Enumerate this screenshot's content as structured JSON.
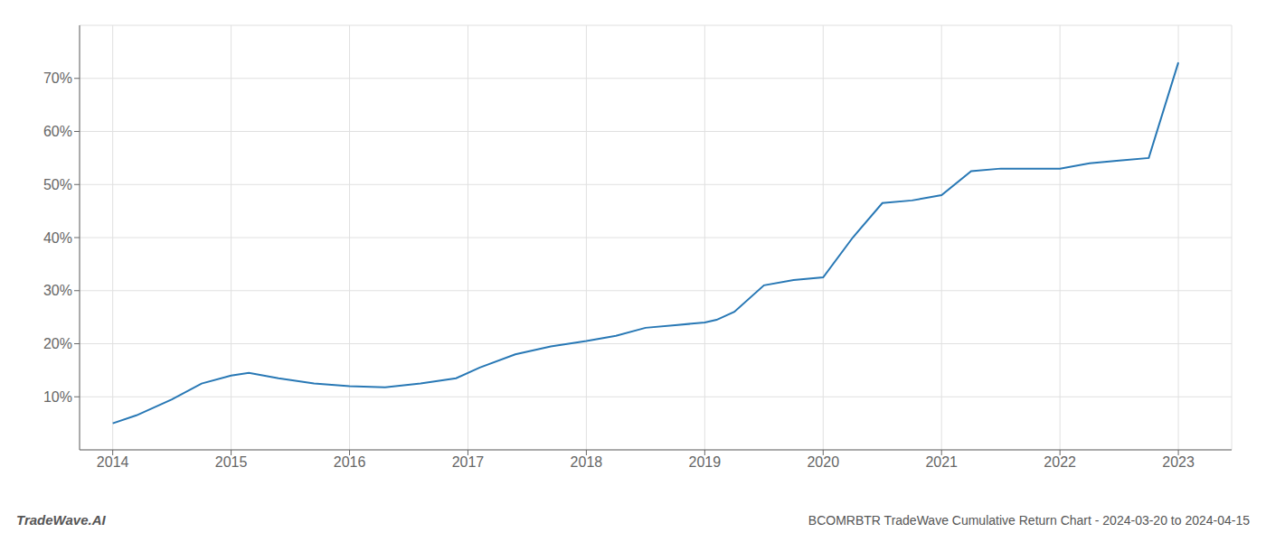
{
  "chart_data": {
    "type": "line",
    "title": "BCOMRBTR TradeWave Cumulative Return Chart - 2024-03-20 to 2024-04-15",
    "annotations": [
      "TradeWave.AI"
    ],
    "x": [
      2014.0,
      2014.2,
      2014.5,
      2014.75,
      2015.0,
      2015.15,
      2015.4,
      2015.7,
      2016.0,
      2016.3,
      2016.6,
      2016.9,
      2017.1,
      2017.4,
      2017.7,
      2018.0,
      2018.25,
      2018.5,
      2018.75,
      2019.0,
      2019.1,
      2019.25,
      2019.5,
      2019.75,
      2020.0,
      2020.25,
      2020.5,
      2020.75,
      2021.0,
      2021.25,
      2021.5,
      2021.75,
      2022.0,
      2022.25,
      2022.5,
      2022.75,
      2023.0
    ],
    "values": [
      5.0,
      6.5,
      9.5,
      12.5,
      14.0,
      14.5,
      13.5,
      12.5,
      12.0,
      11.8,
      12.5,
      13.5,
      15.5,
      18.0,
      19.5,
      20.5,
      21.5,
      23.0,
      23.5,
      24.0,
      24.5,
      26.0,
      31.0,
      32.0,
      32.5,
      40.0,
      46.5,
      47.0,
      48.0,
      52.5,
      53.0,
      53.0,
      53.0,
      54.0,
      54.5,
      55.0,
      73.0
    ],
    "color": "#2878b5",
    "xlim": [
      2013.72,
      2023.45
    ],
    "ylim": [
      0,
      80
    ],
    "xticks": [
      2014,
      2015,
      2016,
      2017,
      2018,
      2019,
      2020,
      2021,
      2022,
      2023
    ],
    "yticks": [
      {
        "value": 10,
        "label": "10%"
      },
      {
        "value": 20,
        "label": "20%"
      },
      {
        "value": 30,
        "label": "30%"
      },
      {
        "value": 40,
        "label": "40%"
      },
      {
        "value": 50,
        "label": "50%"
      },
      {
        "value": 60,
        "label": "60%"
      },
      {
        "value": 70,
        "label": "70%"
      }
    ],
    "grid": true
  }
}
